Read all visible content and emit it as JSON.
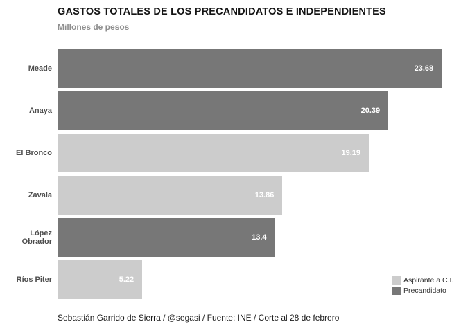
{
  "title": "GASTOS TOTALES DE LOS PRECANDIDATOS E INDEPENDIENTES",
  "subtitle": "Millones de pesos",
  "footer": "Sebastián Garrido de Sierra / @segasi / Fuente: INE / Corte al 28 de febrero",
  "colors": {
    "aspirante": "#cccccc",
    "precandidato": "#777777",
    "value_label": "#ffffff",
    "background": "#ffffff"
  },
  "legend": {
    "position": "bottom-right",
    "items": [
      {
        "label": "Aspirante a C.I.",
        "color": "#cccccc"
      },
      {
        "label": "Precandidato",
        "color": "#777777"
      }
    ]
  },
  "chart_data": {
    "type": "bar",
    "orientation": "horizontal",
    "title": "GASTOS TOTALES DE LOS PRECANDIDATOS E INDEPENDIENTES",
    "subtitle": "Millones de pesos",
    "xlabel": "",
    "ylabel": "",
    "xlim": [
      0,
      24
    ],
    "grid": false,
    "categories": [
      "Meade",
      "Anaya",
      "El Bronco",
      "Zavala",
      "López Obrador",
      "Ríos Piter"
    ],
    "values": [
      23.68,
      20.39,
      19.19,
      13.86,
      13.4,
      5.22
    ],
    "value_labels": [
      "23.68",
      "20.39",
      "19.19",
      "13.86",
      "13.4",
      "5.22"
    ],
    "series_by_bar": [
      "Precandidato",
      "Precandidato",
      "Aspirante a C.I.",
      "Aspirante a C.I.",
      "Precandidato",
      "Aspirante a C.I."
    ],
    "legend_position": "bottom-right",
    "source_note": "Sebastián Garrido de Sierra / @segasi / Fuente: INE / Corte al 28 de febrero"
  }
}
